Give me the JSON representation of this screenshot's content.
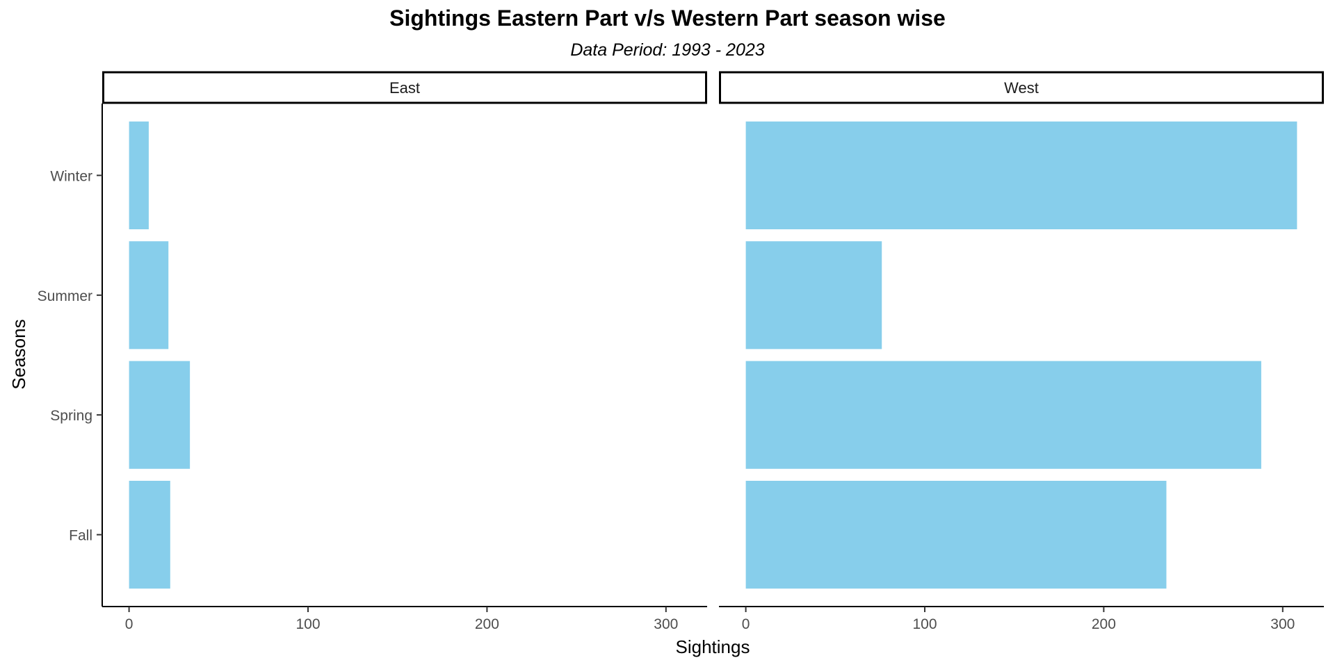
{
  "chart_data": {
    "type": "bar",
    "orientation": "horizontal",
    "title": "Sightings Eastern Part v/s Western Part season wise",
    "subtitle": "Data Period: 1993 - 2023",
    "xlabel": "Sightings",
    "ylabel": "Seasons",
    "categories": [
      "Winter",
      "Summer",
      "Spring",
      "Fall"
    ],
    "x_ticks": [
      0,
      100,
      200,
      300
    ],
    "xlim": [
      -15,
      323
    ],
    "grid": false,
    "bar_color": "#87CEEB",
    "facets": [
      {
        "name": "East",
        "values": [
          11,
          22,
          34,
          23
        ]
      },
      {
        "name": "West",
        "values": [
          308,
          76,
          288,
          235
        ]
      }
    ]
  }
}
